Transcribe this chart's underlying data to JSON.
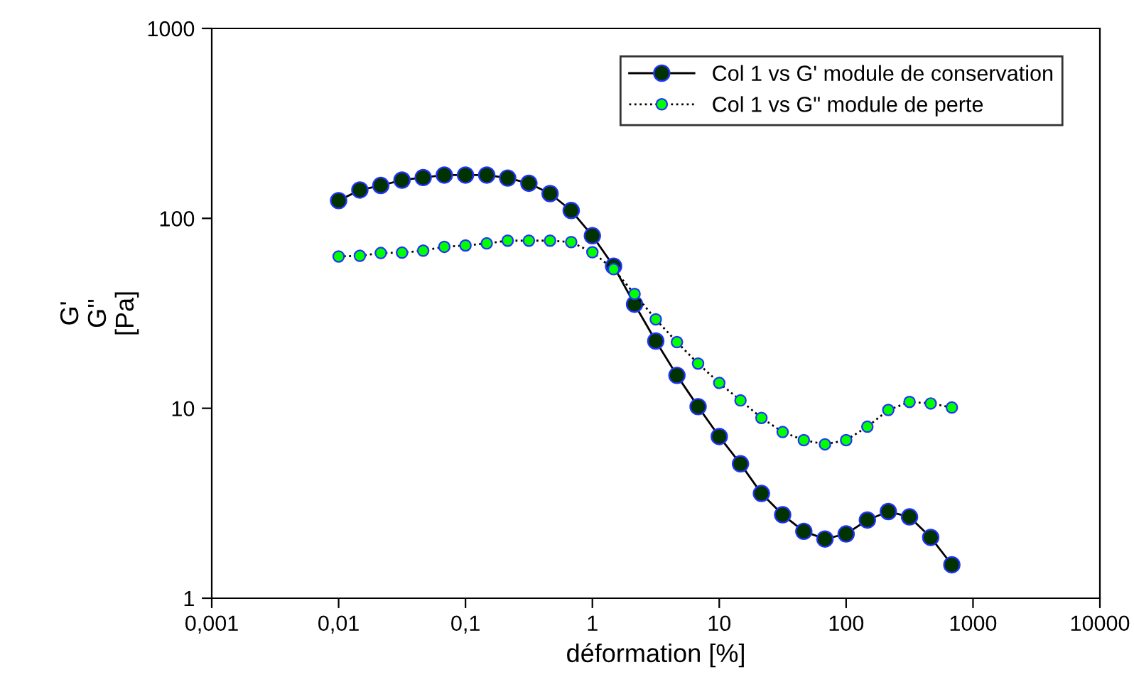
{
  "chart_data": {
    "type": "line",
    "xlabel": "déformation [%]",
    "ylabel": "G'\nG''\n[Pa]",
    "log": "xy",
    "x": [
      0.01,
      0.0147,
      0.0215,
      0.0316,
      0.0464,
      0.0681,
      0.1,
      0.147,
      0.215,
      0.316,
      0.464,
      0.681,
      1,
      1.47,
      2.15,
      3.16,
      4.64,
      6.81,
      10,
      14.7,
      21.5,
      31.6,
      46.4,
      68.1,
      100,
      147,
      215,
      316,
      464,
      681
    ],
    "series": [
      {
        "name": "Col 1 vs G' module de conservation",
        "color": "#003300",
        "line_style": "solid",
        "values": [
          124,
          141,
          149,
          159,
          164,
          169,
          169,
          169,
          163,
          153,
          135,
          110,
          81,
          56,
          35.3,
          22.6,
          14.9,
          10.2,
          7.1,
          5.1,
          3.56,
          2.75,
          2.25,
          2.05,
          2.18,
          2.58,
          2.86,
          2.68,
          2.09,
          1.5
        ]
      },
      {
        "name": "Col 1 vs G\" module de perte",
        "color": "#00ff00",
        "line_style": "dotted",
        "values": [
          63,
          63.5,
          65.7,
          66,
          67.6,
          70.8,
          72,
          73.8,
          76.3,
          76.3,
          76.3,
          75,
          66.3,
          54,
          40,
          29.4,
          22.3,
          17.2,
          13.6,
          11.0,
          8.9,
          7.5,
          6.8,
          6.46,
          6.8,
          8.0,
          9.8,
          10.8,
          10.6,
          10.1
        ]
      }
    ],
    "marker": "circle",
    "legend": "top right",
    "grid": false,
    "xlim": [
      0.001,
      10000
    ],
    "xticks": [
      {
        "value": 0.001,
        "label": "0,001"
      },
      {
        "value": 0.01,
        "label": "0,01"
      },
      {
        "value": 0.1,
        "label": "0,1"
      },
      1,
      10,
      100,
      1000,
      10000
    ],
    "ylim": [
      1,
      1000
    ],
    "yticks": [
      1,
      10,
      100,
      1000
    ]
  }
}
